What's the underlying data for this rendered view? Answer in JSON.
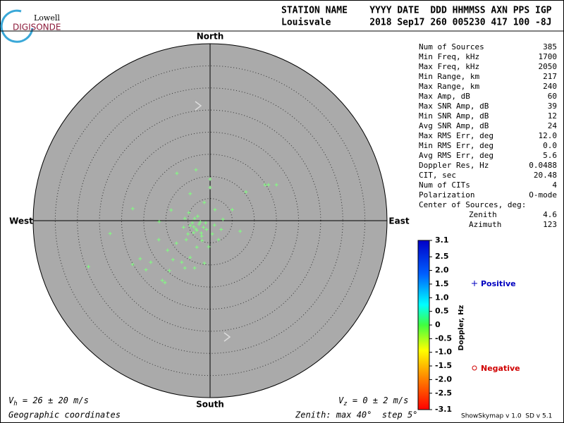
{
  "logo": {
    "top": "Lowell",
    "bottom": "DIGISONDE"
  },
  "header": {
    "line1": "STATION NAME    YYYY DATE  DDD HHMMSS AXN PPS IGP",
    "line2": "Louisvale       2018 Sep17 260 005230 417 100 -8J"
  },
  "stats": [
    [
      "Num of Sources",
      "385"
    ],
    [
      "Min Freq, kHz",
      "1700"
    ],
    [
      "Max Freq, kHz",
      "2050"
    ],
    [
      "Min Range, km",
      "217"
    ],
    [
      "Max Range, km",
      "240"
    ],
    [
      "Max Amp, dB",
      "60"
    ],
    [
      "Max SNR Amp, dB",
      "39"
    ],
    [
      "Min SNR Amp, dB",
      "12"
    ],
    [
      "Avg SNR Amp, dB",
      "24"
    ],
    [
      "Max RMS Err, deg",
      "12.0"
    ],
    [
      "Min RMS Err, deg",
      "0.0"
    ],
    [
      "Avg RMS Err, deg",
      "5.6"
    ],
    [
      "Doppler Res, Hz",
      "0.0488"
    ],
    [
      "CIT, sec",
      "20.48"
    ],
    [
      "Num of CITs",
      "4"
    ],
    [
      "Polarization",
      "O-mode"
    ]
  ],
  "center": {
    "title": "Center of Sources, deg:",
    "rows": [
      [
        "Zenith",
        "4.6"
      ],
      [
        "Azimuth",
        "123"
      ]
    ]
  },
  "legend": {
    "positive": "Positive",
    "negative": "Negative"
  },
  "footer": {
    "vh_symbol": "V",
    "vh_sub": "h",
    "vh_text": " = 26 ± 20 m/s",
    "vz_symbol": "V",
    "vz_sub": "z",
    "vz_text": " = 0 ± 2 m/s",
    "coords": "Geographic coordinates",
    "zenith": "Zenith: max 40°  step 5°",
    "version": "ShowSkymap v 1.0  SD v 5.1"
  },
  "chart_data": {
    "type": "scatter",
    "directions": {
      "north": "North",
      "south": "South",
      "west": "West",
      "east": "East"
    },
    "rlim": [
      0,
      40
    ],
    "rticks": [
      5,
      10,
      15,
      20,
      25,
      30,
      35,
      40
    ],
    "color": "#80ff80",
    "x": [
      -7.5,
      -3.2,
      0,
      0,
      12.4,
      13.2,
      15.0,
      8.1,
      -17.5,
      -4.5,
      -1.3,
      1.1,
      5.0,
      2.9,
      6.8,
      -22.6,
      -11.5,
      -8.8,
      -5.7,
      -4.5,
      -3.2,
      -2.2,
      -3.7,
      -1.9,
      -5.4,
      -7.6,
      -9.6,
      -11.6,
      1.9,
      -0.3,
      -4.5,
      -6.4,
      -8.4,
      -9.2,
      -5.7,
      -3.5,
      -1.3,
      -14.5,
      -17.5,
      -15.8,
      -27.5,
      -10.8,
      -10.2,
      -13.4,
      -3.7,
      -2.5,
      -3.0,
      -1.5,
      -4.0,
      -2.0,
      -1.0,
      -3.5,
      -0.8,
      -2.8,
      1.0,
      0.5,
      -5.0,
      -6.0,
      -4.8,
      2.5,
      -1.8,
      -3.0
    ],
    "y": [
      10.7,
      11.5,
      9.4,
      7.5,
      8.1,
      8.1,
      8.1,
      6.5,
      2.7,
      6.1,
      4.1,
      2.5,
      2.5,
      0.3,
      -2.4,
      -2.9,
      -0.2,
      2.4,
      0.5,
      -1.1,
      -1.9,
      -0.3,
      -2.7,
      -3.5,
      -4.3,
      -5.1,
      -6.7,
      -4.3,
      -4.3,
      -5.9,
      -8.3,
      -9.4,
      -8.8,
      -11.3,
      -10.7,
      -10.7,
      -9.6,
      -11.1,
      -9.9,
      -8.6,
      -10.4,
      -13.5,
      -14.0,
      -9.4,
      -1.4,
      -0.8,
      -2.2,
      -1.5,
      -0.5,
      -2.8,
      -0.5,
      0.5,
      -2.0,
      1.0,
      -1.0,
      -3.0,
      -3.0,
      -1.5,
      1.8,
      -2.0,
      -4.5,
      -6.0
    ],
    "colorbar": {
      "label": "Doppler, Hz",
      "lim": [
        -3.1,
        3.1
      ],
      "ticks": [
        3.1,
        2.5,
        {
          "value": 2,
          "label": "2.0"
        },
        1.5,
        {
          "value": 1,
          "label": "1.0"
        },
        0.5,
        0,
        -0.5,
        {
          "value": -1,
          "label": "-1.0"
        },
        -1.5,
        {
          "value": -2,
          "label": "-2.0"
        },
        -2.5,
        -3.1
      ]
    }
  }
}
